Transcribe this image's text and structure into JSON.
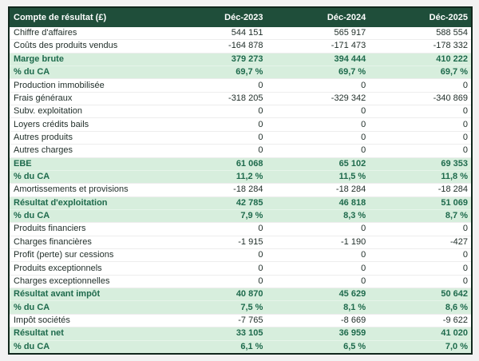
{
  "colors": {
    "page_bg": "#f2f2f2",
    "header_bg": "#1f4e3a",
    "header_text": "#ffffff",
    "highlight_bg": "#d7eedd",
    "highlight_text": "#1e6a4c",
    "body_text": "#1f2d28",
    "outer_border": "#11271c"
  },
  "table": {
    "header": {
      "label": "Compte de résultat (£)",
      "columns": [
        "Déc-2023",
        "Déc-2024",
        "Déc-2025"
      ]
    },
    "rows": [
      {
        "label": "Chiffre d'affaires",
        "values": [
          "544 151",
          "565 917",
          "588 554"
        ],
        "highlight": false
      },
      {
        "label": "Coûts des produits vendus",
        "values": [
          "-164 878",
          "-171 473",
          "-178 332"
        ],
        "highlight": false
      },
      {
        "label": "Marge brute",
        "values": [
          "379 273",
          "394 444",
          "410 222"
        ],
        "highlight": true
      },
      {
        "label": "% du CA",
        "values": [
          "69,7 %",
          "69,7 %",
          "69,7 %"
        ],
        "highlight": true
      },
      {
        "label": "Production immobilisée",
        "values": [
          "0",
          "0",
          "0"
        ],
        "highlight": false
      },
      {
        "label": "Frais généraux",
        "values": [
          "-318 205",
          "-329 342",
          "-340 869"
        ],
        "highlight": false
      },
      {
        "label": "Subv. exploitation",
        "values": [
          "0",
          "0",
          "0"
        ],
        "highlight": false
      },
      {
        "label": "Loyers crédits bails",
        "values": [
          "0",
          "0",
          "0"
        ],
        "highlight": false
      },
      {
        "label": "Autres produits",
        "values": [
          "0",
          "0",
          "0"
        ],
        "highlight": false
      },
      {
        "label": "Autres charges",
        "values": [
          "0",
          "0",
          "0"
        ],
        "highlight": false
      },
      {
        "label": "EBE",
        "values": [
          "61 068",
          "65 102",
          "69 353"
        ],
        "highlight": true
      },
      {
        "label": "% du CA",
        "values": [
          "11,2 %",
          "11,5 %",
          "11,8 %"
        ],
        "highlight": true
      },
      {
        "label": "Amortissements et provisions",
        "values": [
          "-18 284",
          "-18 284",
          "-18 284"
        ],
        "highlight": false
      },
      {
        "label": "Résultat d'exploitation",
        "values": [
          "42 785",
          "46 818",
          "51 069"
        ],
        "highlight": true
      },
      {
        "label": "% du CA",
        "values": [
          "7,9 %",
          "8,3 %",
          "8,7 %"
        ],
        "highlight": true
      },
      {
        "label": "Produits financiers",
        "values": [
          "0",
          "0",
          "0"
        ],
        "highlight": false
      },
      {
        "label": "Charges financières",
        "values": [
          "-1 915",
          "-1 190",
          "-427"
        ],
        "highlight": false
      },
      {
        "label": "Profit (perte) sur cessions",
        "values": [
          "0",
          "0",
          "0"
        ],
        "highlight": false
      },
      {
        "label": "Produits exceptionnels",
        "values": [
          "0",
          "0",
          "0"
        ],
        "highlight": false
      },
      {
        "label": "Charges exceptionnelles",
        "values": [
          "0",
          "0",
          "0"
        ],
        "highlight": false
      },
      {
        "label": "Résultat avant impôt",
        "values": [
          "40 870",
          "45 629",
          "50 642"
        ],
        "highlight": true
      },
      {
        "label": "% du CA",
        "values": [
          "7,5 %",
          "8,1 %",
          "8,6 %"
        ],
        "highlight": true
      },
      {
        "label": "Impôt sociétés",
        "values": [
          "-7 765",
          "-8 669",
          "-9 622"
        ],
        "highlight": false
      },
      {
        "label": "Résultat net",
        "values": [
          "33 105",
          "36 959",
          "41 020"
        ],
        "highlight": true
      },
      {
        "label": "% du CA",
        "values": [
          "6,1 %",
          "6,5 %",
          "7,0 %"
        ],
        "highlight": true
      }
    ]
  },
  "chart_data": {
    "type": "table",
    "title": "Compte de résultat (£)",
    "columns": [
      "Déc-2023",
      "Déc-2024",
      "Déc-2025"
    ],
    "rows": [
      {
        "label": "Chiffre d'affaires",
        "values": [
          544151,
          565917,
          588554
        ]
      },
      {
        "label": "Coûts des produits vendus",
        "values": [
          -164878,
          -171473,
          -178332
        ]
      },
      {
        "label": "Marge brute",
        "values": [
          379273,
          394444,
          410222
        ]
      },
      {
        "label": "% du CA",
        "values": [
          "69,7 %",
          "69,7 %",
          "69,7 %"
        ]
      },
      {
        "label": "Production immobilisée",
        "values": [
          0,
          0,
          0
        ]
      },
      {
        "label": "Frais généraux",
        "values": [
          -318205,
          -329342,
          -340869
        ]
      },
      {
        "label": "Subv. exploitation",
        "values": [
          0,
          0,
          0
        ]
      },
      {
        "label": "Loyers crédits bails",
        "values": [
          0,
          0,
          0
        ]
      },
      {
        "label": "Autres produits",
        "values": [
          0,
          0,
          0
        ]
      },
      {
        "label": "Autres charges",
        "values": [
          0,
          0,
          0
        ]
      },
      {
        "label": "EBE",
        "values": [
          61068,
          65102,
          69353
        ]
      },
      {
        "label": "% du CA",
        "values": [
          "11,2 %",
          "11,5 %",
          "11,8 %"
        ]
      },
      {
        "label": "Amortissements et provisions",
        "values": [
          -18284,
          -18284,
          -18284
        ]
      },
      {
        "label": "Résultat d'exploitation",
        "values": [
          42785,
          46818,
          51069
        ]
      },
      {
        "label": "% du CA",
        "values": [
          "7,9 %",
          "8,3 %",
          "8,7 %"
        ]
      },
      {
        "label": "Produits financiers",
        "values": [
          0,
          0,
          0
        ]
      },
      {
        "label": "Charges financières",
        "values": [
          -1915,
          -1190,
          -427
        ]
      },
      {
        "label": "Profit (perte) sur cessions",
        "values": [
          0,
          0,
          0
        ]
      },
      {
        "label": "Produits exceptionnels",
        "values": [
          0,
          0,
          0
        ]
      },
      {
        "label": "Charges exceptionnelles",
        "values": [
          0,
          0,
          0
        ]
      },
      {
        "label": "Résultat avant impôt",
        "values": [
          40870,
          45629,
          50642
        ]
      },
      {
        "label": "% du CA",
        "values": [
          "7,5 %",
          "8,1 %",
          "8,6 %"
        ]
      },
      {
        "label": "Impôt sociétés",
        "values": [
          -7765,
          -8669,
          -9622
        ]
      },
      {
        "label": "Résultat net",
        "values": [
          33105,
          36959,
          41020
        ]
      },
      {
        "label": "% du CA",
        "values": [
          "6,1 %",
          "6,5 %",
          "7,0 %"
        ]
      }
    ]
  }
}
